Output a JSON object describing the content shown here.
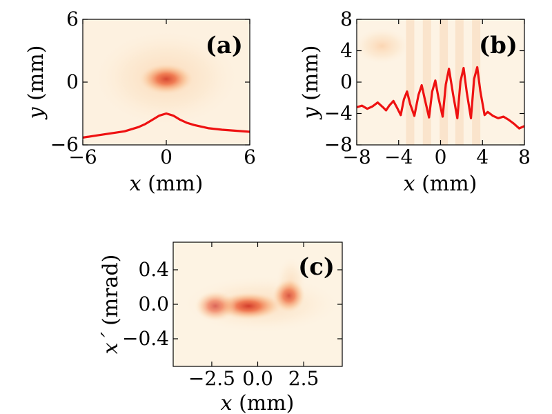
{
  "colors": {
    "curve": "#ee1111",
    "bg": "#fdf3e3",
    "hot": "#d60000"
  },
  "chart_data": [
    {
      "id": "a",
      "type": "heatmap",
      "panel_label": "(a)",
      "xlabel_var": "x",
      "xlabel_unit": "(mm)",
      "ylabel_var": "y",
      "ylabel_unit": "(mm)",
      "xlim": [
        -6,
        6
      ],
      "ylim": [
        -6,
        6
      ],
      "xticks": [
        "−6",
        "0",
        "6"
      ],
      "xtick_values": [
        -6,
        0,
        6
      ],
      "yticks": [
        "6",
        "0",
        "−6"
      ],
      "ytick_values": [
        6,
        0,
        -6
      ],
      "spots": [
        {
          "cx": 0,
          "cy": 0.3,
          "rx": 1.2,
          "ry": 0.9,
          "weight": 1.0
        },
        {
          "cx": 0,
          "cy": 0.4,
          "rx": 3.2,
          "ry": 2.8,
          "weight": 0.35
        }
      ],
      "profile": {
        "description": "horizontal intensity projection",
        "x": [
          -6,
          -5,
          -4,
          -3,
          -2,
          -1.5,
          -1,
          -0.5,
          0,
          0.5,
          1,
          1.5,
          2,
          3,
          4,
          5,
          6
        ],
        "y": [
          -5.3,
          -5.1,
          -4.9,
          -4.7,
          -4.3,
          -4.0,
          -3.6,
          -3.2,
          -3.0,
          -3.2,
          -3.6,
          -3.9,
          -4.1,
          -4.4,
          -4.55,
          -4.65,
          -4.75
        ]
      }
    },
    {
      "id": "b",
      "type": "heatmap",
      "panel_label": "(b)",
      "xlabel_var": "x",
      "xlabel_unit": "(mm)",
      "ylabel_var": "y",
      "ylabel_unit": "(mm)",
      "xlim": [
        -8,
        8
      ],
      "ylim": [
        -8,
        8
      ],
      "xticks": [
        "−8",
        "−4",
        "0",
        "4",
        "8"
      ],
      "xtick_values": [
        -8,
        -4,
        0,
        4,
        8
      ],
      "yticks": [
        "8",
        "4",
        "0",
        "−4",
        "−8"
      ],
      "ytick_values": [
        8,
        4,
        0,
        -4,
        -8
      ],
      "spots": [
        {
          "cx": -5.6,
          "cy": 4.6,
          "rx": 1.6,
          "ry": 1.4,
          "weight": 0.45
        }
      ],
      "profile": {
        "description": "horizontal intensity projection with interference fringes",
        "x": [
          -8,
          -7.5,
          -7,
          -6.5,
          -6,
          -5.5,
          -5.2,
          -4.9,
          -4.5,
          -4.1,
          -3.8,
          -3.5,
          -3.2,
          -2.9,
          -2.5,
          -2.1,
          -1.8,
          -1.5,
          -1.1,
          -0.8,
          -0.5,
          -0.2,
          0.2,
          0.5,
          0.8,
          1.2,
          1.6,
          1.9,
          2.2,
          2.5,
          2.9,
          3.2,
          3.5,
          3.8,
          4.2,
          4.5,
          5,
          5.5,
          6,
          6.5,
          7,
          7.5,
          8
        ],
        "y": [
          -3.2,
          -3.0,
          -3.4,
          -3.1,
          -2.6,
          -3.2,
          -3.6,
          -3.0,
          -2.4,
          -3.4,
          -4.2,
          -2.2,
          -1.2,
          -2.8,
          -4.3,
          -1.6,
          -0.4,
          -2.2,
          -4.5,
          -1.2,
          0.2,
          -2.0,
          -4.4,
          -0.3,
          1.7,
          -1.6,
          -4.6,
          0.1,
          1.8,
          -1.3,
          -4.6,
          0.4,
          1.9,
          -1.2,
          -4.2,
          -3.8,
          -4.3,
          -4.6,
          -4.4,
          -4.8,
          -5.3,
          -5.9,
          -5.6
        ]
      }
    },
    {
      "id": "c",
      "type": "heatmap",
      "panel_label": "(c)",
      "xlabel_var": "x",
      "xlabel_unit": "(mm)",
      "ylabel_var": "x´",
      "ylabel_unit": "(mrad)",
      "xlim": [
        -4.6,
        4.6
      ],
      "ylim": [
        -0.72,
        0.72
      ],
      "xticks": [
        "−2.5",
        "0.0",
        "2.5"
      ],
      "xtick_values": [
        -2.5,
        0,
        2.5
      ],
      "yticks": [
        "0.4",
        "0.0",
        "−0.4"
      ],
      "ytick_values": [
        0.4,
        0,
        -0.4
      ],
      "spots": [
        {
          "cx": 1.7,
          "cy": 0.1,
          "rx": 0.55,
          "ry": 0.12,
          "weight": 1.0
        },
        {
          "cx": -0.5,
          "cy": -0.02,
          "rx": 1.1,
          "ry": 0.1,
          "weight": 0.85
        },
        {
          "cx": -2.3,
          "cy": -0.02,
          "rx": 0.7,
          "ry": 0.11,
          "weight": 0.55
        },
        {
          "cx": 0.2,
          "cy": 0.0,
          "rx": 2.6,
          "ry": 0.2,
          "weight": 0.3
        },
        {
          "cx": 1.8,
          "cy": 0.22,
          "rx": 0.5,
          "ry": 0.2,
          "weight": 0.3
        }
      ]
    }
  ]
}
